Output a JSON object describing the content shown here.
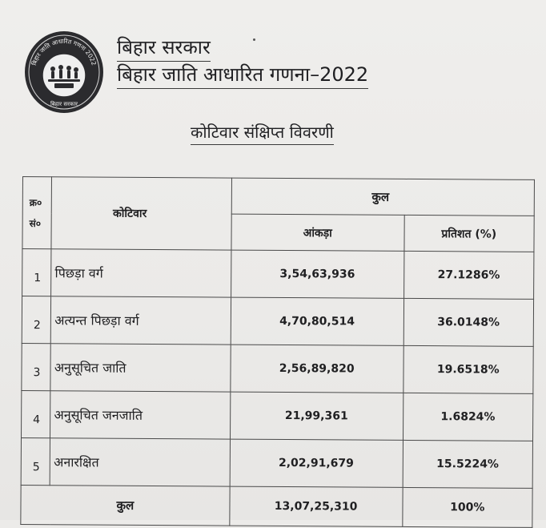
{
  "header": {
    "government": "बिहार सरकार",
    "survey_title": "बिहार जाति आधारित गणना–2022",
    "summary_title": "कोटिवार संक्षिप्त विवरणी"
  },
  "seal": {
    "top_text": "बिहार जाति आधारित गणना 2022",
    "bottom_text": "बिहार सरकार"
  },
  "table": {
    "headers": {
      "serial": "क्र०",
      "serial_line2": "सं०",
      "category": "कोटिवार",
      "total": "कुल",
      "count": "आंकड़ा",
      "percent": "प्रतिशत (%)"
    },
    "rows": [
      {
        "sn": "1",
        "category": "पिछड़ा वर्ग",
        "count": "3,54,63,936",
        "percent": "27.1286%"
      },
      {
        "sn": "2",
        "category": "अत्यन्त पिछड़ा वर्ग",
        "count": "4,70,80,514",
        "percent": "36.0148%"
      },
      {
        "sn": "3",
        "category": "अनुसूचित जाति",
        "count": "2,56,89,820",
        "percent": "19.6518%"
      },
      {
        "sn": "4",
        "category": "अनुसूचित जनजाति",
        "count": "21,99,361",
        "percent": "1.6824%"
      },
      {
        "sn": "5",
        "category": "अनारक्षित",
        "count": "2,02,91,679",
        "percent": "15.5224%"
      }
    ],
    "total": {
      "label": "कुल",
      "count": "13,07,25,310",
      "percent": "100%"
    }
  }
}
